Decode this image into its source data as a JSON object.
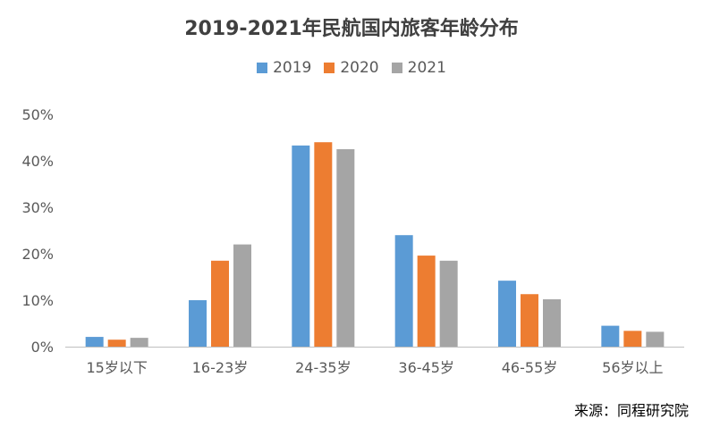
{
  "chart_data": {
    "type": "bar",
    "title": "2019-2021年民航国内旅客年龄分布",
    "categories": [
      "15岁以下",
      "16-23岁",
      "24-35岁",
      "36-45岁",
      "46-55岁",
      "56岁以上"
    ],
    "series": [
      {
        "name": "2019",
        "color": "#5B9BD5",
        "values": [
          2.1,
          10.0,
          43.3,
          24.0,
          14.2,
          4.5
        ]
      },
      {
        "name": "2020",
        "color": "#ED7D31",
        "values": [
          1.5,
          18.5,
          44.0,
          19.6,
          11.3,
          3.4
        ]
      },
      {
        "name": "2021",
        "color": "#A5A5A5",
        "values": [
          1.9,
          22.0,
          42.5,
          18.5,
          10.2,
          3.2
        ]
      }
    ],
    "ylim": [
      0,
      50
    ],
    "yticks": [
      "0%",
      "10%",
      "20%",
      "30%",
      "40%",
      "50%"
    ],
    "grid": false,
    "legend_position": "top"
  },
  "source": "来源：同程研究院"
}
